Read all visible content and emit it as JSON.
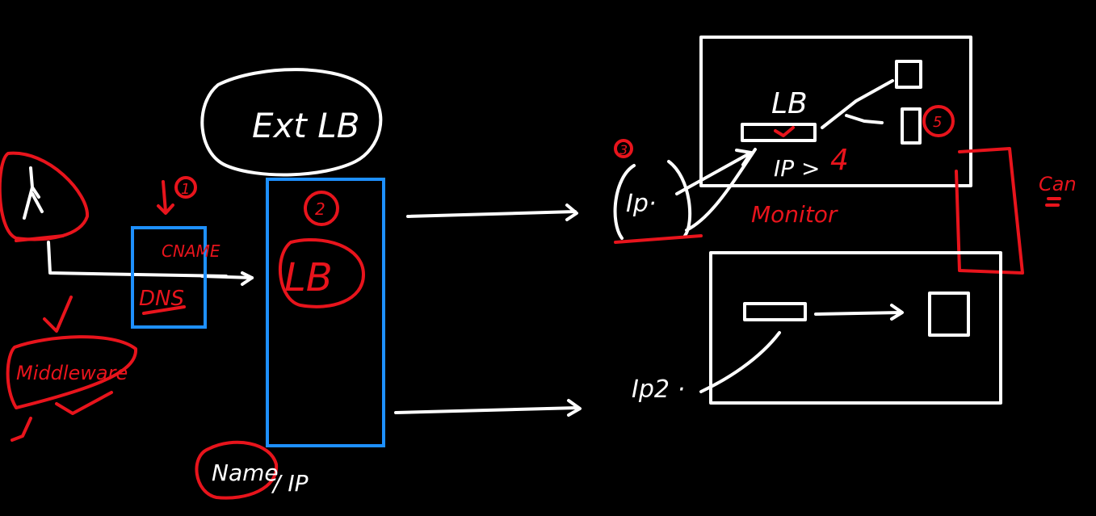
{
  "colors": {
    "background": "#000000",
    "ink_white": "#ffffff",
    "ink_red": "#e8141c",
    "ink_blue": "#1e90ff"
  },
  "labels": {
    "ext_lb": "Ext LB",
    "step_1": "1",
    "step_2": "2",
    "step_3": "3",
    "step_5": "5",
    "cname": "CNAME",
    "dns": "DNS",
    "lb_big": "LB",
    "name": "Name",
    "ip_slash": "/ IP",
    "middleware": "Middleware",
    "ip1": "Ip·",
    "ip2": "Ip2 ·",
    "lb_box": "LB",
    "ip_gt_4_prefix": "IP >",
    "ip_gt_4_value": "4",
    "monitor": "Monitor",
    "can": "Can"
  }
}
